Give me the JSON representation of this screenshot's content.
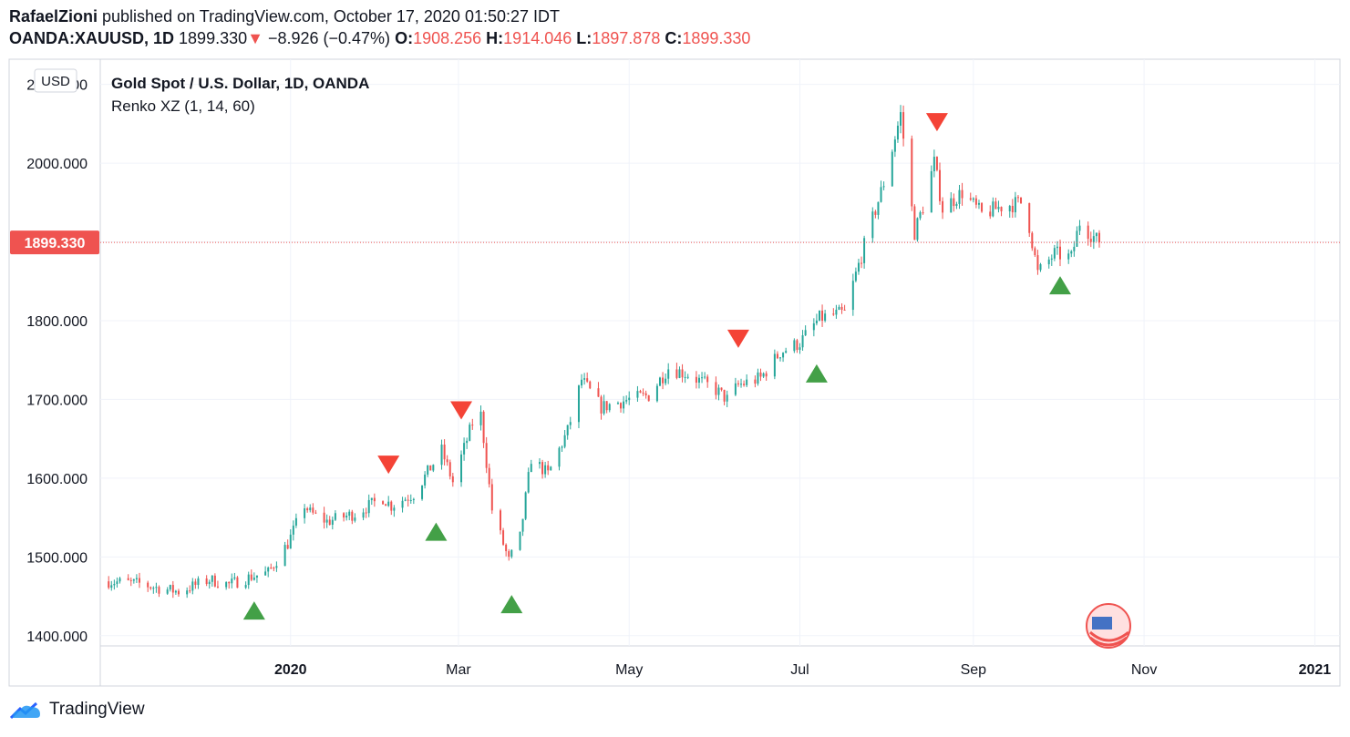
{
  "header": {
    "author": "RafaelZioni",
    "published_text": " published on TradingView.com, October 17, 2020 01:50:27 IDT",
    "symbol": "OANDA:XAUUSD, 1D",
    "last": "1899.330",
    "change_arrow": "▼",
    "change": "−8.926 (−0.47%)",
    "o_label": "O:",
    "o_value": "1908.256",
    "h_label": "H:",
    "h_value": "1914.046",
    "l_label": "L:",
    "l_value": "1897.878",
    "c_label": "C:",
    "c_value": "1899.330"
  },
  "footer": {
    "brand": "TradingView",
    "logo_icon": "tradingview-cloud-icon"
  },
  "colors": {
    "up": "#26a69a",
    "down": "#ef5350",
    "signal_up": "#43a047",
    "signal_down": "#f44336",
    "grid": "#f0f3fa",
    "price_tag": "#ef5350"
  },
  "chart_data": {
    "type": "candlestick",
    "title": "Gold Spot / U.S. Dollar, 1D, OANDA",
    "indicator": "Renko XZ (1, 14, 60)",
    "currency": "USD",
    "current_price": 1899.33,
    "current_price_label": "1899.330",
    "ylim": [
      1387,
      2132
    ],
    "y_ticks": [
      1400,
      1500,
      1600,
      1700,
      1800,
      1900,
      2000,
      2100
    ],
    "y_tick_labels": [
      "1400.000",
      "1500.000",
      "1600.000",
      "1700.000",
      "1800.000",
      "2000.000",
      "2100.000"
    ],
    "x_ticks": [
      {
        "label": "2020",
        "date": "2020-01-01",
        "bold": true
      },
      {
        "label": "Mar",
        "date": "2020-03-01",
        "bold": false
      },
      {
        "label": "May",
        "date": "2020-05-01",
        "bold": false
      },
      {
        "label": "Jul",
        "date": "2020-07-01",
        "bold": false
      },
      {
        "label": "Sep",
        "date": "2020-09-01",
        "bold": false
      },
      {
        "label": "Nov",
        "date": "2020-11-01",
        "bold": false
      },
      {
        "label": "2021",
        "date": "2021-01-01",
        "bold": true
      }
    ],
    "x_range": [
      "2019-10-25",
      "2021-01-10"
    ],
    "close_path": [
      [
        "2019-10-28",
        1469
      ],
      [
        "2019-11-08",
        1466
      ],
      [
        "2019-11-14",
        1461
      ],
      [
        "2019-11-22",
        1456
      ],
      [
        "2019-12-03",
        1471
      ],
      [
        "2019-12-10",
        1465
      ],
      [
        "2019-12-18",
        1475
      ],
      [
        "2019-12-24",
        1480
      ],
      [
        "2019-12-31",
        1517
      ],
      [
        "2020-01-06",
        1566
      ],
      [
        "2020-01-08",
        1556
      ],
      [
        "2020-01-14",
        1545
      ],
      [
        "2020-01-24",
        1555
      ],
      [
        "2020-02-03",
        1575
      ],
      [
        "2020-02-06",
        1565
      ],
      [
        "2020-02-14",
        1580
      ],
      [
        "2020-02-24",
        1635
      ],
      [
        "2020-02-28",
        1595
      ],
      [
        "2020-03-06",
        1670
      ],
      [
        "2020-03-09",
        1680
      ],
      [
        "2020-03-13",
        1560
      ],
      [
        "2020-03-19",
        1495
      ],
      [
        "2020-03-23",
        1525
      ],
      [
        "2020-03-27",
        1625
      ],
      [
        "2020-04-02",
        1605
      ],
      [
        "2020-04-09",
        1660
      ],
      [
        "2020-04-14",
        1725
      ],
      [
        "2020-04-21",
        1690
      ],
      [
        "2020-05-01",
        1700
      ],
      [
        "2020-05-08",
        1705
      ],
      [
        "2020-05-15",
        1740
      ],
      [
        "2020-05-22",
        1732
      ],
      [
        "2020-06-01",
        1712
      ],
      [
        "2020-06-05",
        1700
      ],
      [
        "2020-06-09",
        1718
      ],
      [
        "2020-06-17",
        1727
      ],
      [
        "2020-06-24",
        1760
      ],
      [
        "2020-07-01",
        1772
      ],
      [
        "2020-07-08",
        1803
      ],
      [
        "2020-07-17",
        1810
      ],
      [
        "2020-07-24",
        1895
      ],
      [
        "2020-07-31",
        1975
      ],
      [
        "2020-08-06",
        2062
      ],
      [
        "2020-08-11",
        1912
      ],
      [
        "2020-08-14",
        1945
      ],
      [
        "2020-08-18",
        2001
      ],
      [
        "2020-08-21",
        1942
      ],
      [
        "2020-08-28",
        1963
      ],
      [
        "2020-09-04",
        1935
      ],
      [
        "2020-09-11",
        1945
      ],
      [
        "2020-09-18",
        1950
      ],
      [
        "2020-09-21",
        1920
      ],
      [
        "2020-09-24",
        1860
      ],
      [
        "2020-09-30",
        1885
      ],
      [
        "2020-10-06",
        1880
      ],
      [
        "2020-10-09",
        1925
      ],
      [
        "2020-10-16",
        1899
      ]
    ],
    "signals": [
      {
        "date": "2019-12-19",
        "price": 1432,
        "direction": "up"
      },
      {
        "date": "2020-02-05",
        "price": 1617,
        "direction": "down"
      },
      {
        "date": "2020-02-22",
        "price": 1532,
        "direction": "up"
      },
      {
        "date": "2020-03-02",
        "price": 1686,
        "direction": "down"
      },
      {
        "date": "2020-03-20",
        "price": 1440,
        "direction": "up"
      },
      {
        "date": "2020-06-09",
        "price": 1777,
        "direction": "down"
      },
      {
        "date": "2020-07-07",
        "price": 1733,
        "direction": "up"
      },
      {
        "date": "2020-08-19",
        "price": 2052,
        "direction": "down"
      },
      {
        "date": "2020-10-02",
        "price": 1845,
        "direction": "up"
      }
    ],
    "grid": true,
    "legend": "top-left"
  }
}
